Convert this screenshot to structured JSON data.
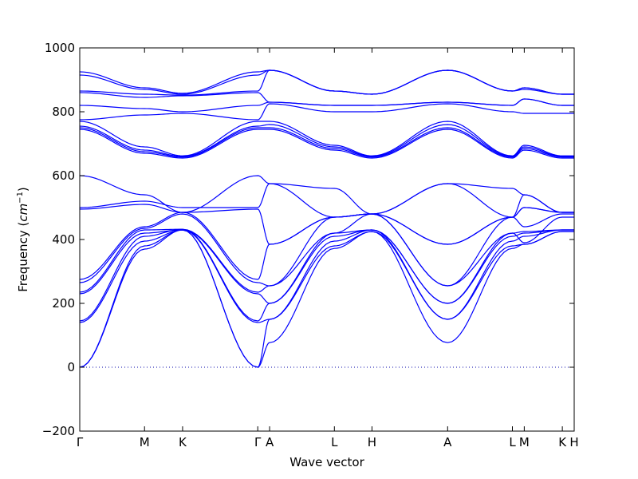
{
  "chart_data": {
    "type": "line",
    "title": "",
    "xlabel": "Wave vector",
    "ylabel_prefix": "Frequency (",
    "ylabel_unit": "cm",
    "ylabel_exp": "−1",
    "ylabel_suffix": ")",
    "ylim": [
      -200,
      1000
    ],
    "yticks": [
      -200,
      0,
      200,
      400,
      600,
      800,
      1000
    ],
    "ytick_labels": [
      "−200",
      "0",
      "200",
      "400",
      "600",
      "800",
      "1000"
    ],
    "xlim": [
      0,
      1
    ],
    "kpoints": [
      {
        "label": "Γ",
        "x": 0.0
      },
      {
        "label": "M",
        "x": 0.131
      },
      {
        "label": "K",
        "x": 0.208
      },
      {
        "label": "Γ",
        "x": 0.36
      },
      {
        "label": "A",
        "x": 0.384
      },
      {
        "label": "L",
        "x": 0.515
      },
      {
        "label": "H",
        "x": 0.591
      },
      {
        "label": "A",
        "x": 0.744
      },
      {
        "label": "L",
        "x": 0.875
      },
      {
        "label": "M",
        "x": 0.899
      },
      {
        "label": "K",
        "x": 0.976
      },
      {
        "label": "H",
        "x": 1.0
      }
    ],
    "zero_line": true,
    "line_color": "#0000ff",
    "zero_line_color": "#0000aa",
    "bands": [
      [
        0,
        370,
        430,
        0,
        77,
        372,
        425,
        77,
        372,
        385,
        425,
        425
      ],
      [
        0,
        380,
        430,
        0,
        150,
        380,
        425,
        150,
        380,
        385,
        425,
        425
      ],
      [
        140,
        395,
        430,
        140,
        150,
        395,
        430,
        150,
        395,
        410,
        430,
        430
      ],
      [
        145,
        410,
        432,
        145,
        200,
        410,
        430,
        200,
        410,
        420,
        430,
        430
      ],
      [
        230,
        420,
        430,
        230,
        200,
        420,
        430,
        200,
        420,
        425,
        430,
        430
      ],
      [
        235,
        430,
        432,
        235,
        255,
        420,
        480,
        255,
        420,
        390,
        470,
        470
      ],
      [
        265,
        435,
        480,
        265,
        255,
        470,
        480,
        255,
        470,
        440,
        480,
        480
      ],
      [
        275,
        440,
        485,
        275,
        385,
        470,
        480,
        385,
        470,
        500,
        485,
        485
      ],
      [
        495,
        510,
        485,
        495,
        385,
        470,
        480,
        385,
        470,
        500,
        485,
        485
      ],
      [
        500,
        520,
        500,
        500,
        575,
        560,
        480,
        575,
        560,
        540,
        485,
        485
      ],
      [
        600,
        540,
        485,
        600,
        575,
        470,
        480,
        575,
        470,
        540,
        485,
        485
      ],
      [
        745,
        670,
        655,
        745,
        745,
        680,
        655,
        745,
        655,
        680,
        655,
        655
      ],
      [
        750,
        675,
        658,
        750,
        750,
        685,
        658,
        750,
        658,
        685,
        658,
        658
      ],
      [
        755,
        680,
        660,
        755,
        760,
        690,
        660,
        760,
        660,
        690,
        660,
        660
      ],
      [
        770,
        690,
        662,
        770,
        770,
        695,
        662,
        770,
        662,
        695,
        662,
        662
      ],
      [
        775,
        790,
        795,
        775,
        825,
        800,
        800,
        825,
        800,
        795,
        795,
        795
      ],
      [
        820,
        810,
        800,
        820,
        830,
        820,
        820,
        830,
        820,
        840,
        820,
        820
      ],
      [
        860,
        845,
        850,
        860,
        830,
        820,
        820,
        830,
        820,
        840,
        820,
        820
      ],
      [
        865,
        855,
        852,
        865,
        930,
        865,
        855,
        930,
        865,
        870,
        855,
        855
      ],
      [
        915,
        870,
        855,
        915,
        930,
        865,
        855,
        930,
        865,
        875,
        855,
        855
      ],
      [
        925,
        875,
        858,
        925,
        930,
        865,
        855,
        930,
        865,
        875,
        855,
        855
      ]
    ]
  }
}
